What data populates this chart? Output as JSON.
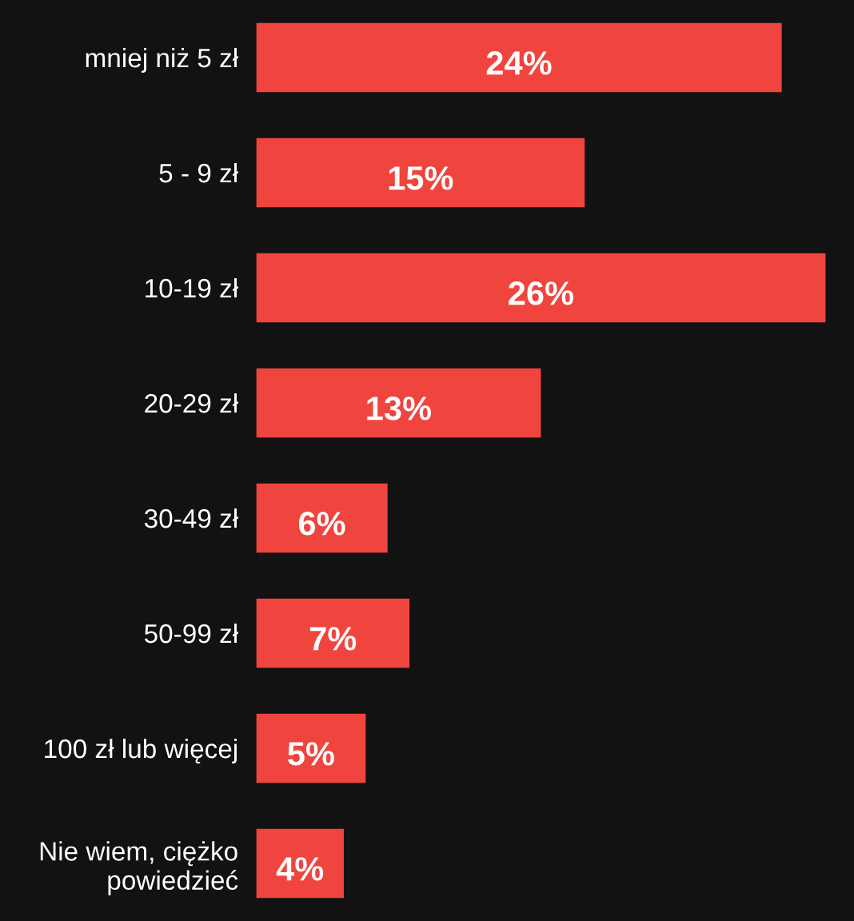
{
  "chart_data": {
    "type": "bar",
    "orientation": "horizontal",
    "categories": [
      "mniej niż 5 zł",
      "5 - 9 zł",
      "10-19 zł",
      "20-29 zł",
      "30-49 zł",
      "50-99 zł",
      "100 zł lub więcej",
      "Nie wiem, ciężko\npowiedzieć"
    ],
    "values": [
      24,
      15,
      26,
      13,
      6,
      7,
      5,
      4
    ],
    "value_labels": [
      "24%",
      "15%",
      "26%",
      "13%",
      "6%",
      "7%",
      "5%",
      "4%"
    ],
    "color": "#f0453f",
    "grid": false,
    "legend": false
  }
}
